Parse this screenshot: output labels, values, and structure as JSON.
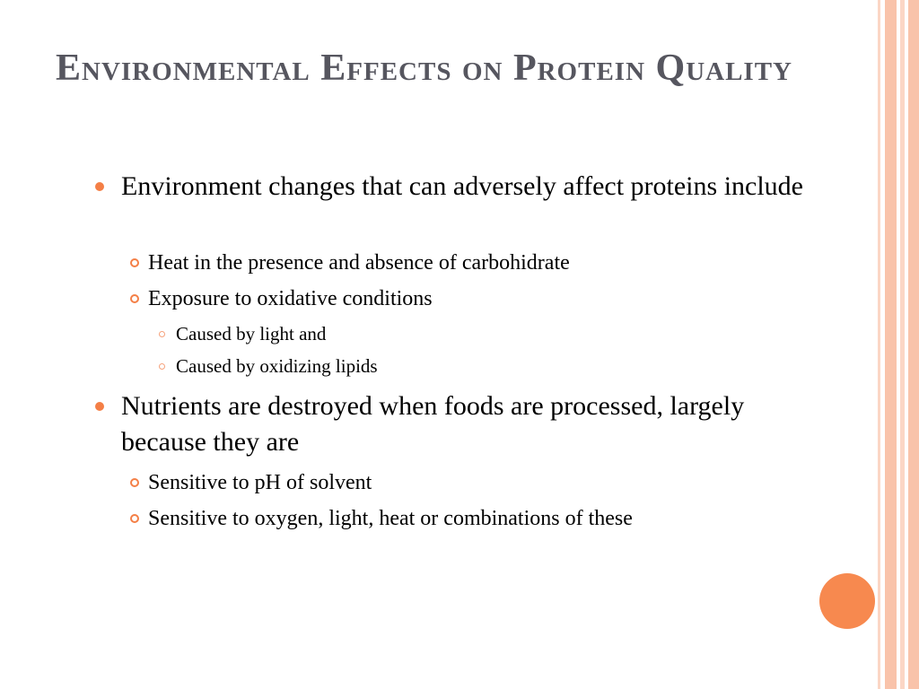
{
  "title": "Environmental Effects on Protein Quality",
  "items": [
    {
      "text": "Environment changes that can adversely affect proteins include",
      "children": [
        {
          "text": "Heat in the presence and absence of carbohidrate"
        },
        {
          "text": "Exposure to oxidative conditions",
          "children": [
            {
              "text": "Caused by light and"
            },
            {
              "text": "Caused by oxidizing lipids"
            }
          ]
        }
      ]
    },
    {
      "text": "Nutrients are destroyed when foods are processed, largely because they are",
      "children": [
        {
          "text": "Sensitive to pH of solvent"
        },
        {
          "text": "Sensitive to oxygen, light, heat or combinations of these"
        }
      ]
    }
  ]
}
